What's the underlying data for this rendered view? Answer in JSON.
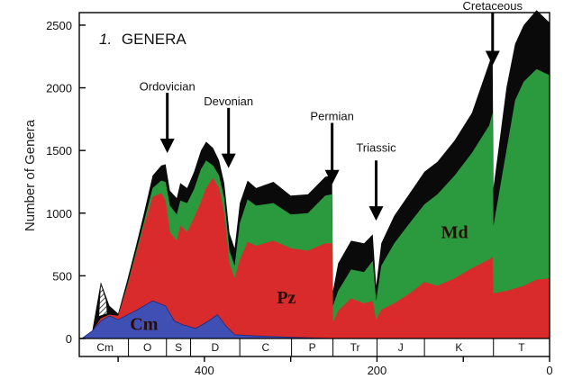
{
  "chart_data": {
    "type": "area",
    "title_number": "1.",
    "title": "GENERA",
    "xlabel": "",
    "ylabel": "Number of Genera",
    "xlim": [
      545,
      0
    ],
    "ylim": [
      0,
      2600
    ],
    "y_ticks": [
      0,
      500,
      1000,
      1500,
      2000,
      2500
    ],
    "x_ticks": [
      400,
      200,
      0
    ],
    "grid": false,
    "series_colors": {
      "Cm": "#3f4fb3",
      "Pz": "#d92b2b",
      "Md": "#2b9a3f",
      "other": "#0a0a0a"
    },
    "series": [
      {
        "name": "Cm",
        "label": "Cm",
        "color": "#3f4fb3",
        "points": [
          [
            542,
            0
          ],
          [
            530,
            60
          ],
          [
            520,
            140
          ],
          [
            510,
            180
          ],
          [
            500,
            150
          ],
          [
            480,
            220
          ],
          [
            460,
            300
          ],
          [
            445,
            260
          ],
          [
            435,
            140
          ],
          [
            425,
            110
          ],
          [
            410,
            80
          ],
          [
            395,
            140
          ],
          [
            385,
            190
          ],
          [
            375,
            100
          ],
          [
            365,
            30
          ],
          [
            340,
            20
          ],
          [
            300,
            10
          ],
          [
            251,
            0
          ],
          [
            0,
            0
          ]
        ]
      },
      {
        "name": "Pz",
        "label": "Pz",
        "color": "#d92b2b",
        "points": [
          [
            542,
            0
          ],
          [
            530,
            60
          ],
          [
            520,
            160
          ],
          [
            510,
            190
          ],
          [
            500,
            180
          ],
          [
            490,
            400
          ],
          [
            480,
            650
          ],
          [
            470,
            900
          ],
          [
            460,
            1130
          ],
          [
            450,
            1160
          ],
          [
            445,
            1100
          ],
          [
            440,
            850
          ],
          [
            432,
            780
          ],
          [
            428,
            900
          ],
          [
            420,
            850
          ],
          [
            412,
            960
          ],
          [
            404,
            1090
          ],
          [
            398,
            1200
          ],
          [
            390,
            1280
          ],
          [
            383,
            1200
          ],
          [
            377,
            1000
          ],
          [
            371,
            600
          ],
          [
            365,
            480
          ],
          [
            359,
            630
          ],
          [
            350,
            770
          ],
          [
            340,
            740
          ],
          [
            320,
            780
          ],
          [
            300,
            720
          ],
          [
            280,
            700
          ],
          [
            260,
            760
          ],
          [
            252,
            760
          ],
          [
            251,
            130
          ],
          [
            245,
            220
          ],
          [
            230,
            320
          ],
          [
            215,
            280
          ],
          [
            205,
            300
          ],
          [
            201,
            150
          ],
          [
            195,
            230
          ],
          [
            180,
            280
          ],
          [
            160,
            370
          ],
          [
            145,
            450
          ],
          [
            130,
            420
          ],
          [
            110,
            480
          ],
          [
            90,
            560
          ],
          [
            70,
            630
          ],
          [
            66,
            650
          ],
          [
            65,
            360
          ],
          [
            50,
            380
          ],
          [
            30,
            420
          ],
          [
            15,
            470
          ],
          [
            0,
            480
          ]
        ]
      },
      {
        "name": "Md",
        "label": "Md",
        "color": "#2b9a3f",
        "points": [
          [
            542,
            0
          ],
          [
            530,
            60
          ],
          [
            520,
            160
          ],
          [
            510,
            190
          ],
          [
            500,
            180
          ],
          [
            490,
            410
          ],
          [
            480,
            670
          ],
          [
            470,
            930
          ],
          [
            460,
            1200
          ],
          [
            450,
            1260
          ],
          [
            445,
            1250
          ],
          [
            440,
            1060
          ],
          [
            432,
            990
          ],
          [
            428,
            1100
          ],
          [
            420,
            1080
          ],
          [
            412,
            1190
          ],
          [
            404,
            1350
          ],
          [
            398,
            1420
          ],
          [
            390,
            1380
          ],
          [
            383,
            1300
          ],
          [
            377,
            1120
          ],
          [
            371,
            700
          ],
          [
            365,
            580
          ],
          [
            359,
            920
          ],
          [
            350,
            1110
          ],
          [
            340,
            1060
          ],
          [
            320,
            1080
          ],
          [
            300,
            990
          ],
          [
            280,
            1000
          ],
          [
            260,
            1140
          ],
          [
            252,
            1150
          ],
          [
            251,
            260
          ],
          [
            245,
            380
          ],
          [
            230,
            550
          ],
          [
            215,
            530
          ],
          [
            205,
            620
          ],
          [
            201,
            300
          ],
          [
            195,
            580
          ],
          [
            180,
            760
          ],
          [
            160,
            940
          ],
          [
            145,
            1070
          ],
          [
            130,
            1150
          ],
          [
            110,
            1300
          ],
          [
            90,
            1480
          ],
          [
            70,
            1700
          ],
          [
            66,
            1800
          ],
          [
            65,
            900
          ],
          [
            50,
            1500
          ],
          [
            40,
            1900
          ],
          [
            30,
            2050
          ],
          [
            15,
            2150
          ],
          [
            0,
            2100
          ]
        ]
      },
      {
        "name": "",
        "label": "",
        "color": "#0a0a0a",
        "points": [
          [
            542,
            0
          ],
          [
            530,
            60
          ],
          [
            520,
            450
          ],
          [
            510,
            260
          ],
          [
            500,
            200
          ],
          [
            490,
            450
          ],
          [
            480,
            720
          ],
          [
            470,
            1000
          ],
          [
            460,
            1300
          ],
          [
            450,
            1380
          ],
          [
            445,
            1390
          ],
          [
            440,
            1180
          ],
          [
            432,
            1120
          ],
          [
            428,
            1240
          ],
          [
            420,
            1200
          ],
          [
            412,
            1330
          ],
          [
            404,
            1500
          ],
          [
            398,
            1570
          ],
          [
            390,
            1520
          ],
          [
            383,
            1420
          ],
          [
            377,
            1240
          ],
          [
            371,
            840
          ],
          [
            365,
            720
          ],
          [
            359,
            1080
          ],
          [
            350,
            1260
          ],
          [
            340,
            1200
          ],
          [
            320,
            1250
          ],
          [
            300,
            1140
          ],
          [
            280,
            1150
          ],
          [
            260,
            1290
          ],
          [
            252,
            1300
          ],
          [
            251,
            380
          ],
          [
            245,
            600
          ],
          [
            230,
            780
          ],
          [
            215,
            760
          ],
          [
            205,
            830
          ],
          [
            201,
            420
          ],
          [
            195,
            760
          ],
          [
            180,
            980
          ],
          [
            160,
            1180
          ],
          [
            145,
            1330
          ],
          [
            130,
            1410
          ],
          [
            110,
            1580
          ],
          [
            90,
            1800
          ],
          [
            70,
            2200
          ],
          [
            66,
            2280
          ],
          [
            65,
            1200
          ],
          [
            50,
            2000
          ],
          [
            40,
            2350
          ],
          [
            30,
            2500
          ],
          [
            15,
            2620
          ],
          [
            0,
            2520
          ]
        ]
      }
    ],
    "periods": [
      {
        "label": "Cm",
        "start": 542,
        "end": 488
      },
      {
        "label": "O",
        "start": 488,
        "end": 444
      },
      {
        "label": "S",
        "start": 444,
        "end": 416
      },
      {
        "label": "D",
        "start": 416,
        "end": 359
      },
      {
        "label": "C",
        "start": 359,
        "end": 299
      },
      {
        "label": "P",
        "start": 299,
        "end": 251
      },
      {
        "label": "Tr",
        "start": 251,
        "end": 200
      },
      {
        "label": "J",
        "start": 200,
        "end": 145
      },
      {
        "label": "K",
        "start": 145,
        "end": 65
      },
      {
        "label": "T",
        "start": 65,
        "end": 0
      }
    ],
    "annotations": [
      {
        "label": "Ordovician",
        "x": 443,
        "text_y": 1980,
        "arrow_top": 1960,
        "arrow_bottom": 1480
      },
      {
        "label": "Devonian",
        "x": 372,
        "text_y": 1860,
        "arrow_top": 1840,
        "arrow_bottom": 1360
      },
      {
        "label": "Permian",
        "x": 252,
        "text_y": 1740,
        "arrow_top": 1720,
        "arrow_bottom": 1230
      },
      {
        "label": "Triassic",
        "x": 201,
        "text_y": 1490,
        "arrow_top": 1420,
        "arrow_bottom": 940
      },
      {
        "label": "Cretaceous",
        "x": 66,
        "text_y": 2620,
        "arrow_top": 2600,
        "arrow_bottom": 2180
      }
    ],
    "fauna_labels": [
      {
        "label": "Cm",
        "x": 470,
        "y": 70
      },
      {
        "label": "Pz",
        "x": 305,
        "y": 280
      },
      {
        "label": "Md",
        "x": 110,
        "y": 800
      }
    ]
  }
}
